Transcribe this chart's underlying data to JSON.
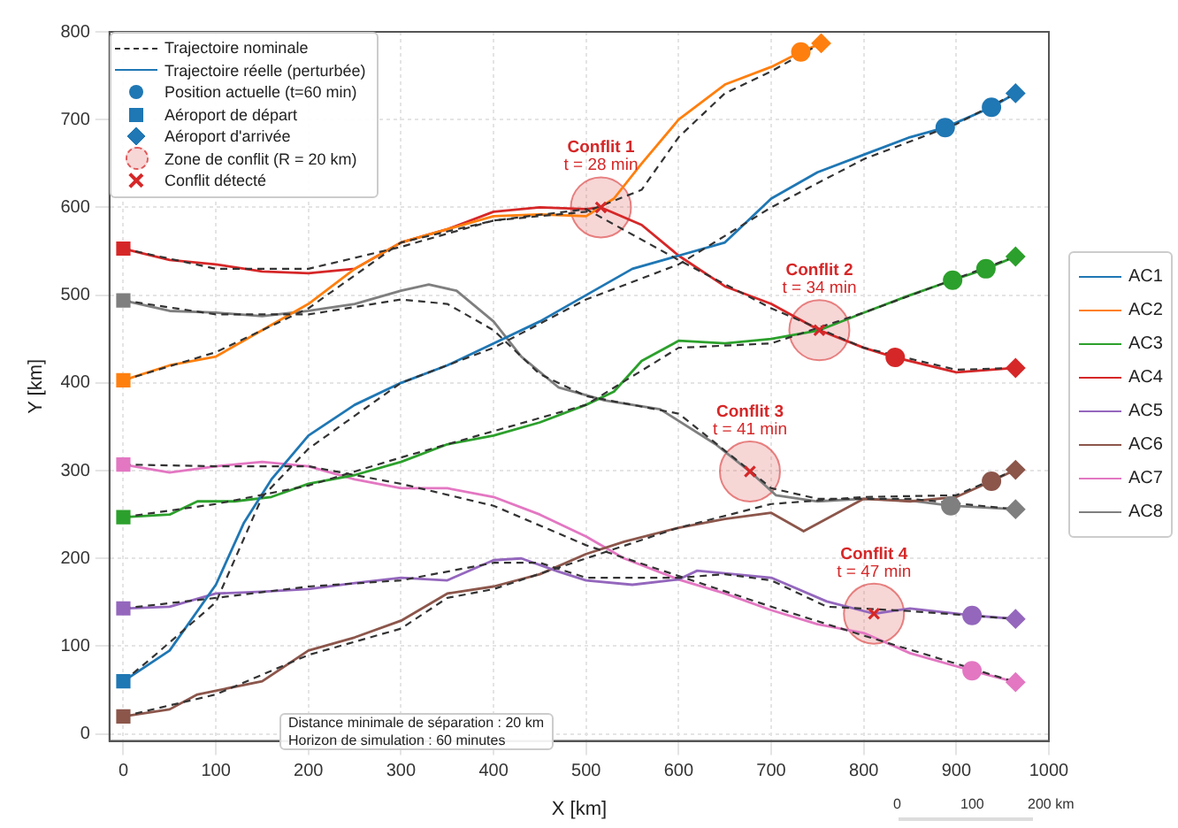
{
  "chart_data": {
    "type": "line",
    "xlabel": "X [km]",
    "ylabel": "Y [km]",
    "xlim": [
      -15,
      1000
    ],
    "ylim": [
      -8,
      800
    ],
    "xticks": [
      0,
      100,
      200,
      300,
      400,
      500,
      600,
      700,
      800,
      900,
      1000
    ],
    "yticks": [
      0,
      100,
      200,
      300,
      400,
      500,
      600,
      700,
      800
    ],
    "grid": true,
    "legend": "right",
    "series": [
      {
        "name": "Trajectoire nominale",
        "color": "#333333",
        "line_style": "dashed",
        "x": [
          0,
          30,
          100,
          150,
          200,
          300,
          400,
          500,
          600,
          700,
          800,
          900,
          964
        ],
        "values": [
          60,
          86,
          150,
          270,
          325,
          400,
          440,
          495,
          535,
          600,
          655,
          695,
          730
        ]
      },
      {
        "color": "#333333",
        "line_style": "dashed",
        "x": [
          0,
          100,
          200,
          300,
          400,
          500,
          560,
          600,
          650,
          700,
          754
        ],
        "values": [
          403,
          435,
          485,
          560,
          585,
          595,
          620,
          680,
          730,
          755,
          787
        ]
      },
      {
        "color": "#333333",
        "line_style": "dashed",
        "x": [
          0,
          100,
          200,
          300,
          400,
          500,
          600,
          700,
          800,
          964
        ],
        "values": [
          247,
          262,
          283,
          315,
          345,
          375,
          440,
          445,
          480,
          544
        ]
      },
      {
        "color": "#333333",
        "line_style": "dashed",
        "x": [
          0,
          100,
          200,
          300,
          400,
          500,
          600,
          700,
          800,
          900,
          964
        ],
        "values": [
          553,
          530,
          530,
          555,
          585,
          598,
          540,
          485,
          440,
          415,
          417
        ]
      },
      {
        "color": "#333333",
        "line_style": "dashed",
        "x": [
          0,
          100,
          200,
          300,
          400,
          450,
          500,
          600,
          650,
          700,
          760,
          850,
          964
        ],
        "values": [
          143,
          155,
          168,
          175,
          195,
          195,
          178,
          178,
          182,
          175,
          145,
          140,
          131
        ]
      },
      {
        "color": "#333333",
        "line_style": "dashed",
        "x": [
          0,
          100,
          200,
          300,
          350,
          400,
          500,
          600,
          700,
          800,
          900,
          964
        ],
        "values": [
          20,
          45,
          90,
          120,
          155,
          165,
          200,
          235,
          262,
          270,
          272,
          301
        ]
      },
      {
        "color": "#333333",
        "line_style": "dashed",
        "x": [
          0,
          100,
          200,
          300,
          400,
          500,
          600,
          700,
          800,
          900,
          964
        ],
        "values": [
          307,
          305,
          305,
          285,
          260,
          215,
          180,
          145,
          112,
          80,
          59
        ]
      },
      {
        "color": "#333333",
        "line_style": "dashed",
        "x": [
          0,
          100,
          200,
          300,
          350,
          400,
          450,
          500,
          600,
          677,
          700,
          750,
          850,
          964
        ],
        "values": [
          494,
          478,
          478,
          495,
          490,
          460,
          410,
          385,
          365,
          300,
          280,
          268,
          268,
          256
        ]
      },
      {
        "name": "Trajectoire réelle (perturbée)",
        "color": "#1f77b4"
      },
      {
        "name": "Position actuelle (t=60 min)",
        "type": "scatter",
        "marker": "circle",
        "color": "#1f77b4",
        "x": [
          888,
          938,
          732,
          896,
          932,
          834,
          917,
          938,
          917,
          894
        ],
        "values": [
          691,
          714,
          777,
          517,
          530,
          429,
          135,
          288,
          72,
          260
        ],
        "colors": [
          "#1f77b4",
          "#1f77b4",
          "#ff7f0e",
          "#2ca02c",
          "#2ca02c",
          "#d62728",
          "#9467bd",
          "#8c564b",
          "#e377c2",
          "#7f7f7f"
        ]
      },
      {
        "name": "Aéroport de départ",
        "type": "scatter",
        "marker": "square",
        "x": [
          0,
          0,
          0,
          0,
          0,
          0,
          0,
          0
        ],
        "values": [
          60,
          403,
          247,
          553,
          143,
          20,
          307,
          494
        ],
        "colors": [
          "#1f77b4",
          "#ff7f0e",
          "#2ca02c",
          "#d62728",
          "#9467bd",
          "#8c564b",
          "#e377c2",
          "#7f7f7f"
        ]
      },
      {
        "name": "Aéroport d'arrivée",
        "type": "scatter",
        "marker": "diamond",
        "x": [
          964,
          754,
          964,
          964,
          964,
          964,
          964,
          964
        ],
        "values": [
          730,
          787,
          544,
          417,
          131,
          301,
          59,
          256
        ],
        "colors": [
          "#1f77b4",
          "#ff7f0e",
          "#2ca02c",
          "#d62728",
          "#9467bd",
          "#8c564b",
          "#e377c2",
          "#7f7f7f"
        ]
      },
      {
        "name": "Zone de conflit (R = 20 km)",
        "type": "bubble",
        "color": "#e05a5a",
        "x": [
          516,
          752,
          677,
          811
        ],
        "values": [
          600,
          460,
          299,
          137
        ],
        "sizes": [
          1,
          1,
          1,
          1
        ]
      },
      {
        "name": "Conflit détecté",
        "type": "scatter",
        "marker": "cross",
        "color": "#d62728",
        "x": [
          516,
          752,
          677,
          811
        ],
        "values": [
          600,
          460,
          299,
          137
        ]
      },
      {
        "name": "AC1",
        "color": "#1f77b4",
        "x": [
          0,
          50,
          100,
          130,
          160,
          200,
          250,
          300,
          350,
          400,
          450,
          500,
          550,
          600,
          650,
          700,
          750,
          800,
          850,
          888,
          938,
          964
        ],
        "values": [
          60,
          95,
          170,
          240,
          290,
          340,
          375,
          400,
          420,
          445,
          470,
          500,
          530,
          545,
          560,
          610,
          640,
          660,
          680,
          691,
          714,
          730
        ]
      },
      {
        "name": "AC2",
        "color": "#ff7f0e",
        "x": [
          0,
          50,
          100,
          150,
          200,
          250,
          300,
          350,
          400,
          450,
          500,
          530,
          560,
          600,
          650,
          700,
          732,
          754
        ],
        "values": [
          403,
          420,
          430,
          460,
          490,
          530,
          560,
          575,
          590,
          592,
          590,
          610,
          650,
          700,
          740,
          760,
          777,
          787
        ]
      },
      {
        "name": "AC3",
        "color": "#2ca02c",
        "x": [
          0,
          50,
          80,
          120,
          160,
          200,
          250,
          300,
          350,
          400,
          450,
          500,
          530,
          560,
          600,
          650,
          700,
          752,
          800,
          850,
          896,
          932,
          964
        ],
        "values": [
          247,
          250,
          265,
          265,
          270,
          285,
          295,
          310,
          330,
          340,
          355,
          375,
          390,
          425,
          448,
          445,
          450,
          460,
          480,
          500,
          517,
          530,
          544
        ]
      },
      {
        "name": "AC4",
        "color": "#d62728",
        "x": [
          0,
          50,
          100,
          150,
          200,
          250,
          300,
          350,
          400,
          450,
          500,
          516,
          560,
          600,
          650,
          700,
          752,
          800,
          834,
          900,
          964
        ],
        "values": [
          553,
          540,
          535,
          527,
          525,
          530,
          560,
          575,
          595,
          600,
          598,
          600,
          580,
          545,
          510,
          490,
          460,
          440,
          429,
          412,
          417
        ]
      },
      {
        "name": "AC5",
        "color": "#9467bd",
        "x": [
          0,
          50,
          100,
          150,
          200,
          250,
          300,
          350,
          400,
          430,
          470,
          500,
          550,
          600,
          620,
          700,
          760,
          811,
          850,
          917,
          964
        ],
        "values": [
          143,
          145,
          160,
          162,
          165,
          172,
          178,
          175,
          198,
          200,
          185,
          175,
          170,
          176,
          186,
          178,
          151,
          137,
          143,
          135,
          131
        ]
      },
      {
        "name": "AC6",
        "color": "#8c564b",
        "x": [
          0,
          50,
          80,
          150,
          200,
          250,
          300,
          350,
          400,
          450,
          500,
          541,
          600,
          650,
          700,
          735,
          800,
          850,
          900,
          938,
          964
        ],
        "values": [
          20,
          28,
          45,
          60,
          95,
          110,
          129,
          160,
          168,
          182,
          205,
          219,
          235,
          245,
          252,
          231,
          268,
          265,
          270,
          288,
          301
        ]
      },
      {
        "name": "AC7",
        "color": "#e377c2",
        "x": [
          0,
          50,
          100,
          150,
          200,
          250,
          300,
          350,
          400,
          450,
          500,
          541,
          600,
          650,
          700,
          750,
          800,
          850,
          917,
          964
        ],
        "values": [
          307,
          298,
          305,
          310,
          305,
          290,
          280,
          280,
          270,
          250,
          225,
          200,
          176,
          160,
          141,
          125,
          115,
          92,
          72,
          59
        ]
      },
      {
        "name": "AC8",
        "color": "#7f7f7f",
        "x": [
          0,
          50,
          100,
          150,
          200,
          250,
          300,
          330,
          360,
          400,
          430,
          470,
          520,
          580,
          640,
          677,
          705,
          750,
          800,
          850,
          894,
          964
        ],
        "values": [
          494,
          482,
          480,
          476,
          482,
          490,
          505,
          512,
          505,
          470,
          430,
          395,
          380,
          370,
          330,
          299,
          272,
          265,
          268,
          266,
          260,
          256
        ]
      }
    ],
    "annotations": [
      {
        "text": "Conflit 1\nt = 28 min",
        "x": 516,
        "y": 600
      },
      {
        "text": "Conflit 2\nt = 34 min",
        "x": 752,
        "y": 460
      },
      {
        "text": "Conflit 3\nt = 41 min",
        "x": 677,
        "y": 299
      },
      {
        "text": "Conflit 4\nt = 47 min",
        "x": 811,
        "y": 137
      },
      "Distance minimale de séparation : 20 km",
      "Horizon de simulation : 60 minutes",
      "0",
      "100",
      "200 km"
    ]
  }
}
